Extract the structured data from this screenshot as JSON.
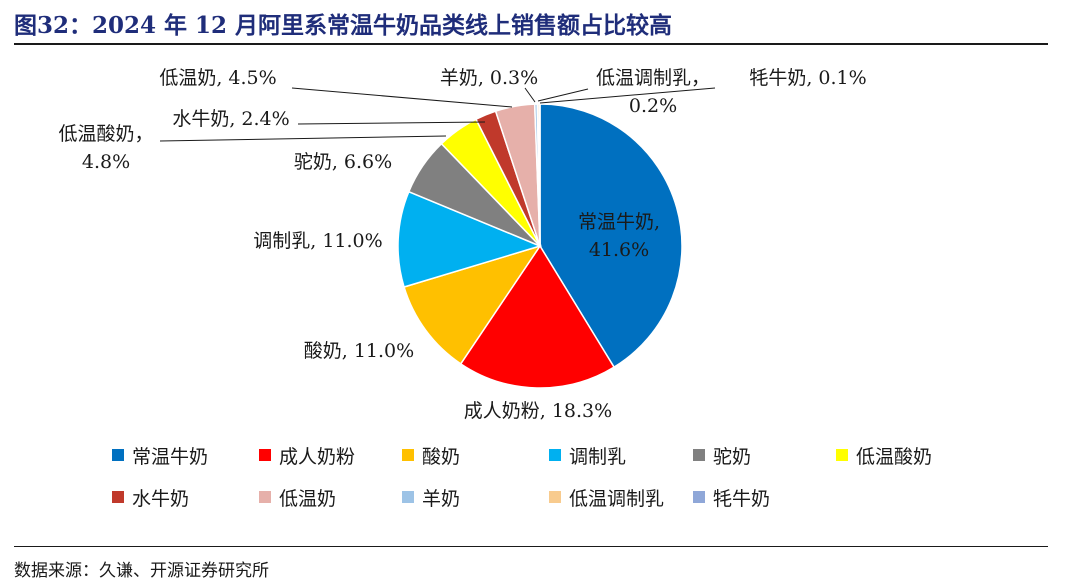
{
  "title": "图32：2024 年 12 月阿里系常温牛奶品类线上销售额占比较高",
  "source": "数据来源：久谦、开源证券研究所",
  "chart_data": {
    "type": "pie",
    "title": "2024 年 12 月阿里系常温牛奶品类线上销售额占比较高",
    "legend_position": "bottom",
    "slices": [
      {
        "name": "常温牛奶",
        "value": 41.6,
        "label": "41.6%",
        "color": "#0070c0"
      },
      {
        "name": "成人奶粉",
        "value": 18.3,
        "label": "18.3%",
        "color": "#ff0000"
      },
      {
        "name": "酸奶",
        "value": 11.0,
        "label": "11.0%",
        "color": "#ffc000"
      },
      {
        "name": "调制乳",
        "value": 11.0,
        "label": "11.0%",
        "color": "#00b0f0"
      },
      {
        "name": "驼奶",
        "value": 6.6,
        "label": "6.6%",
        "color": "#808080"
      },
      {
        "name": "低温酸奶",
        "value": 4.8,
        "label": "4.8%",
        "color": "#ffff00"
      },
      {
        "name": "水牛奶",
        "value": 2.4,
        "label": "2.4%",
        "color": "#c0392b"
      },
      {
        "name": "低温奶",
        "value": 4.5,
        "label": "4.5%",
        "color": "#e6b0aa"
      },
      {
        "name": "羊奶",
        "value": 0.3,
        "label": "0.3%",
        "color": "#9dc3e6"
      },
      {
        "name": "低温调制乳",
        "value": 0.2,
        "label": "0.2%",
        "color": "#f8cb8e"
      },
      {
        "name": "牦牛奶",
        "value": 0.1,
        "label": "0.1%",
        "color": "#8fa7d8"
      }
    ]
  }
}
